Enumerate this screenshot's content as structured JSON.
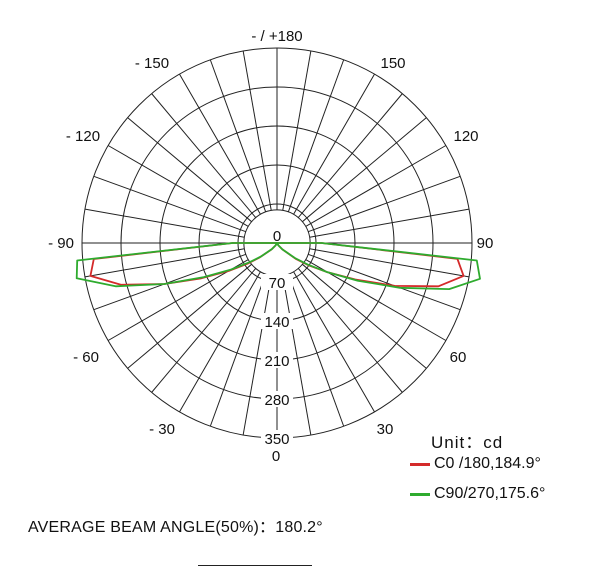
{
  "chart_data": {
    "type": "polar",
    "angle_labels": [
      {
        "angle": 180,
        "text": "- / +180"
      },
      {
        "angle": 150,
        "text": "150"
      },
      {
        "angle": -150,
        "text": "- 150"
      },
      {
        "angle": 120,
        "text": "120"
      },
      {
        "angle": -120,
        "text": "- 120"
      },
      {
        "angle": 90,
        "text": "90"
      },
      {
        "angle": -90,
        "text": "- 90"
      },
      {
        "angle": 60,
        "text": "60"
      },
      {
        "angle": -60,
        "text": "- 60"
      },
      {
        "angle": 30,
        "text": "30"
      },
      {
        "angle": -30,
        "text": "- 30"
      },
      {
        "angle": 0,
        "text": "0"
      }
    ],
    "radial_ticks": [
      0,
      70,
      140,
      210,
      280,
      350
    ],
    "radial_max": 350,
    "angle_step_deg": 10,
    "unit": "Unit：cd",
    "series": [
      {
        "name": "C0 /180,184.9°",
        "color": "#d42a2a",
        "points": [
          {
            "angle": -90,
            "value": 80
          },
          {
            "angle": -85,
            "value": 330
          },
          {
            "angle": -80,
            "value": 340
          },
          {
            "angle": -75,
            "value": 290
          },
          {
            "angle": -70,
            "value": 215
          },
          {
            "angle": -65,
            "value": 150
          },
          {
            "angle": -60,
            "value": 100
          },
          {
            "angle": -55,
            "value": 65
          },
          {
            "angle": -50,
            "value": 40
          },
          {
            "angle": -40,
            "value": 15
          },
          {
            "angle": -30,
            "value": 5
          },
          {
            "angle": 0,
            "value": 0
          },
          {
            "angle": 30,
            "value": 5
          },
          {
            "angle": 40,
            "value": 15
          },
          {
            "angle": 50,
            "value": 45
          },
          {
            "angle": 55,
            "value": 70
          },
          {
            "angle": 60,
            "value": 105
          },
          {
            "angle": 65,
            "value": 155
          },
          {
            "angle": 70,
            "value": 225
          },
          {
            "angle": 75,
            "value": 300
          },
          {
            "angle": 80,
            "value": 340
          },
          {
            "angle": 85,
            "value": 325
          },
          {
            "angle": 90,
            "value": 80
          }
        ]
      },
      {
        "name": "C90/270,175.6°",
        "color": "#2eab2e",
        "points": [
          {
            "angle": -90,
            "value": 80
          },
          {
            "angle": -85,
            "value": 360
          },
          {
            "angle": -80,
            "value": 365
          },
          {
            "angle": -75,
            "value": 300
          },
          {
            "angle": -70,
            "value": 215
          },
          {
            "angle": -65,
            "value": 145
          },
          {
            "angle": -60,
            "value": 95
          },
          {
            "angle": -55,
            "value": 60
          },
          {
            "angle": -50,
            "value": 38
          },
          {
            "angle": -40,
            "value": 14
          },
          {
            "angle": -30,
            "value": 5
          },
          {
            "angle": 0,
            "value": 0
          },
          {
            "angle": 30,
            "value": 5
          },
          {
            "angle": 40,
            "value": 15
          },
          {
            "angle": 50,
            "value": 42
          },
          {
            "angle": 55,
            "value": 68
          },
          {
            "angle": 60,
            "value": 105
          },
          {
            "angle": 65,
            "value": 160
          },
          {
            "angle": 70,
            "value": 235
          },
          {
            "angle": 75,
            "value": 320
          },
          {
            "angle": 80,
            "value": 370
          },
          {
            "angle": 85,
            "value": 360
          },
          {
            "angle": 90,
            "value": 80
          }
        ]
      }
    ]
  },
  "legend": {
    "unit_label": "Unit：cd",
    "c0_label": "C0  /180,184.9°",
    "c90_label": "C90/270,175.6°",
    "c0_color": "#d42a2a",
    "c90_color": "#2eab2e"
  },
  "beam_angle": "AVERAGE BEAM ANGLE(50%)：180.2°"
}
